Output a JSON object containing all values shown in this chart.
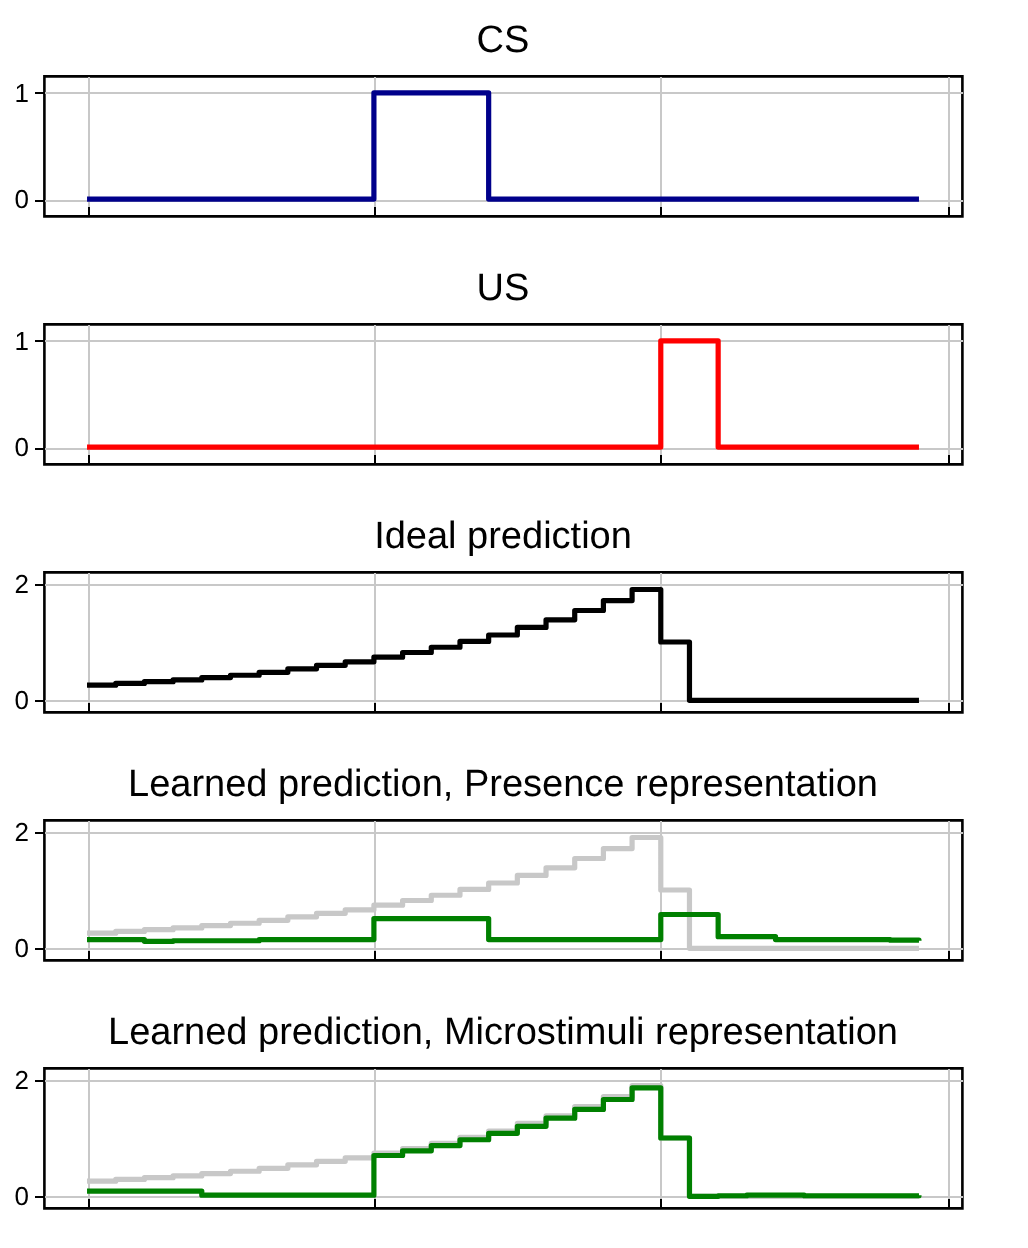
{
  "chart_data": [
    {
      "type": "step",
      "title": "CS",
      "categories": [
        null,
        null,
        null,
        null,
        null,
        null,
        null,
        null,
        null,
        null,
        null,
        null,
        null,
        null,
        null,
        null,
        null,
        null,
        null,
        null,
        null,
        null,
        null,
        null,
        null,
        null,
        null,
        null,
        null,
        null
      ],
      "ylim": [
        -0.16,
        1.16
      ],
      "yticks": [
        0,
        1
      ],
      "grid": true,
      "tick_labels": "y",
      "series": [
        {
          "color": "#00008b",
          "values": [
            0,
            0,
            0,
            0,
            0,
            0,
            0,
            0,
            0,
            0,
            1,
            1,
            1,
            1,
            0,
            0,
            0,
            0,
            0,
            0,
            0,
            0,
            0,
            0,
            0,
            0,
            0,
            0,
            0,
            0
          ]
        }
      ]
    },
    {
      "type": "step",
      "title": "US",
      "categories": [
        null,
        null,
        null,
        null,
        null,
        null,
        null,
        null,
        null,
        null,
        null,
        null,
        null,
        null,
        null,
        null,
        null,
        null,
        null,
        null,
        null,
        null,
        null,
        null,
        null,
        null,
        null,
        null,
        null,
        null
      ],
      "ylim": [
        -0.16,
        1.16
      ],
      "yticks": [
        0,
        1
      ],
      "grid": true,
      "tick_labels": "y",
      "series": [
        {
          "color": "#ff0000",
          "values": [
            0,
            0,
            0,
            0,
            0,
            0,
            0,
            0,
            0,
            0,
            0,
            0,
            0,
            0,
            0,
            0,
            0,
            0,
            0,
            0,
            1,
            1,
            0,
            0,
            0,
            0,
            0,
            0,
            0,
            0
          ]
        }
      ]
    },
    {
      "type": "step",
      "title": "Ideal prediction",
      "categories": [
        null,
        null,
        null,
        null,
        null,
        null,
        null,
        null,
        null,
        null,
        null,
        null,
        null,
        null,
        null,
        null,
        null,
        null,
        null,
        null,
        null,
        null,
        null,
        null,
        null,
        null,
        null,
        null,
        null,
        null
      ],
      "ylim": [
        -0.2,
        2.2
      ],
      "yticks": [
        0,
        2
      ],
      "grid": true,
      "tick_labels": "y",
      "series": [
        {
          "color": "#000000",
          "values": [
            0.26,
            0.29,
            0.32,
            0.35,
            0.39,
            0.43,
            0.48,
            0.54,
            0.6,
            0.66,
            0.74,
            0.82,
            0.91,
            1.01,
            1.12,
            1.25,
            1.38,
            1.54,
            1.71,
            1.9,
            1.0,
            0,
            0,
            0,
            0,
            0,
            0,
            0,
            0,
            0
          ]
        }
      ]
    },
    {
      "type": "step",
      "title": "Learned prediction, Presence representation",
      "categories": [
        null,
        null,
        null,
        null,
        null,
        null,
        null,
        null,
        null,
        null,
        null,
        null,
        null,
        null,
        null,
        null,
        null,
        null,
        null,
        null,
        null,
        null,
        null,
        null,
        null,
        null,
        null,
        null,
        null,
        null
      ],
      "ylim": [
        -0.2,
        2.2
      ],
      "yticks": [
        0,
        2
      ],
      "grid": true,
      "tick_labels": "y",
      "series": [
        {
          "color": "#c8c8c8",
          "values": [
            0.26,
            0.29,
            0.32,
            0.35,
            0.39,
            0.43,
            0.48,
            0.54,
            0.6,
            0.66,
            0.74,
            0.82,
            0.91,
            1.01,
            1.12,
            1.25,
            1.38,
            1.54,
            1.71,
            1.9,
            1.0,
            0,
            0,
            0,
            0,
            0,
            0,
            0,
            0,
            0
          ]
        },
        {
          "color": "#008000",
          "values": [
            0.15,
            0.15,
            0.12,
            0.13,
            0.13,
            0.13,
            0.15,
            0.15,
            0.15,
            0.15,
            0.51,
            0.51,
            0.51,
            0.51,
            0.15,
            0.15,
            0.15,
            0.15,
            0.15,
            0.15,
            0.58,
            0.58,
            0.2,
            0.2,
            0.15,
            0.15,
            0.15,
            0.15,
            0.14,
            0.13
          ]
        }
      ]
    },
    {
      "type": "step",
      "title": "Learned prediction, Microstimuli representation",
      "categories": [
        null,
        null,
        null,
        null,
        null,
        null,
        null,
        null,
        null,
        null,
        null,
        null,
        null,
        null,
        null,
        null,
        null,
        null,
        null,
        null,
        null,
        null,
        null,
        null,
        null,
        null,
        null,
        null,
        null,
        null
      ],
      "ylim": [
        -0.2,
        2.2
      ],
      "yticks": [
        0,
        2
      ],
      "grid": true,
      "tick_labels": "y",
      "series": [
        {
          "color": "#c8c8c8",
          "values": [
            0.26,
            0.29,
            0.32,
            0.35,
            0.39,
            0.43,
            0.48,
            0.54,
            0.6,
            0.66,
            0.74,
            0.82,
            0.91,
            1.01,
            1.12,
            1.25,
            1.38,
            1.54,
            1.71,
            1.9,
            1.0,
            0,
            0,
            0,
            0,
            0,
            0,
            0,
            0,
            0
          ]
        },
        {
          "color": "#008000",
          "values": [
            0.09,
            0.09,
            0.09,
            0.09,
            0.02,
            0.02,
            0.02,
            0.02,
            0.02,
            0.02,
            0.7,
            0.78,
            0.87,
            0.97,
            1.08,
            1.2,
            1.34,
            1.49,
            1.66,
            1.86,
            1.0,
            0,
            0.01,
            0.02,
            0.02,
            0.01,
            0.01,
            0.01,
            0.01,
            0.02
          ]
        }
      ]
    }
  ]
}
